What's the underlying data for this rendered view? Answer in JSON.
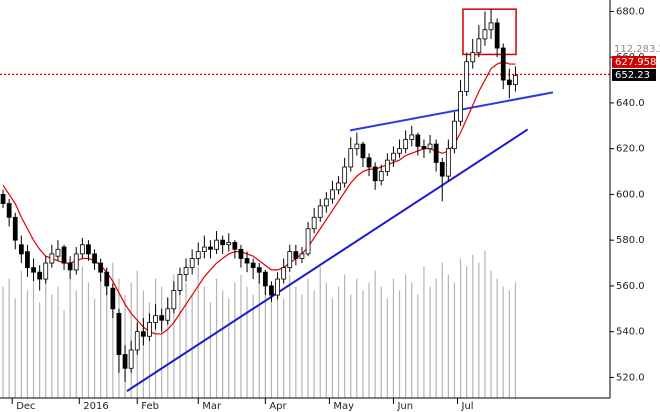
{
  "chart_data": {
    "type": "candlestick",
    "x": [
      -3,
      -1,
      1,
      3,
      5,
      7,
      9,
      11,
      13,
      15,
      17,
      19,
      21,
      23,
      25,
      27,
      29,
      31,
      33,
      35,
      37,
      39,
      41,
      43,
      45,
      47,
      49,
      51,
      53,
      55,
      57,
      59,
      61,
      63,
      65,
      67,
      69,
      71,
      73,
      75,
      77,
      79,
      81,
      83,
      85,
      87,
      89,
      91,
      93,
      95,
      97,
      99,
      101,
      103,
      105,
      107,
      109,
      111,
      113,
      115,
      117,
      119,
      121,
      123,
      125,
      127,
      129,
      131,
      133,
      135,
      137,
      139,
      141,
      143,
      145,
      147,
      149,
      151,
      153,
      155,
      157,
      159,
      161,
      163,
      165
    ],
    "candles": [
      [
        600,
        602,
        594,
        596
      ],
      [
        596,
        598,
        586,
        590
      ],
      [
        590,
        592,
        576,
        580
      ],
      [
        578,
        582,
        570,
        574
      ],
      [
        575,
        578,
        564,
        568
      ],
      [
        568,
        572,
        562,
        566
      ],
      [
        566,
        569,
        558,
        563
      ],
      [
        563,
        573,
        561,
        570
      ],
      [
        570,
        578,
        568,
        574
      ],
      [
        573,
        580,
        571,
        576
      ],
      [
        577,
        578,
        567,
        570
      ],
      [
        570,
        573,
        563,
        567
      ],
      [
        567,
        577,
        565,
        574
      ],
      [
        574,
        581,
        572,
        578
      ],
      [
        578,
        580,
        571,
        574
      ],
      [
        574,
        576,
        567,
        570
      ],
      [
        570,
        572,
        562,
        566
      ],
      [
        566,
        568,
        556,
        560
      ],
      [
        559,
        561,
        546,
        550
      ],
      [
        548,
        550,
        522,
        530
      ],
      [
        530,
        534,
        518,
        524
      ],
      [
        524,
        536,
        522,
        532
      ],
      [
        532,
        544,
        530,
        540
      ],
      [
        540,
        546,
        534,
        538
      ],
      [
        538,
        548,
        536,
        544
      ],
      [
        544,
        552,
        541,
        547
      ],
      [
        547,
        550,
        540,
        545
      ],
      [
        545,
        555,
        543,
        550
      ],
      [
        550,
        562,
        548,
        558
      ],
      [
        558,
        568,
        556,
        565
      ],
      [
        565,
        572,
        562,
        568
      ],
      [
        568,
        576,
        565,
        572
      ],
      [
        572,
        579,
        569,
        575
      ],
      [
        575,
        582,
        572,
        577
      ],
      [
        577,
        580,
        572,
        576
      ],
      [
        576,
        584,
        574,
        580
      ],
      [
        580,
        582,
        574,
        578
      ],
      [
        578,
        583,
        575,
        579
      ],
      [
        579,
        580,
        572,
        576
      ],
      [
        576,
        578,
        568,
        572
      ],
      [
        572,
        575,
        566,
        570
      ],
      [
        570,
        572,
        563,
        568
      ],
      [
        568,
        570,
        561,
        566
      ],
      [
        566,
        567,
        556,
        560
      ],
      [
        560,
        562,
        553,
        556
      ],
      [
        556,
        566,
        554,
        563
      ],
      [
        563,
        572,
        561,
        568
      ],
      [
        568,
        578,
        566,
        575
      ],
      [
        575,
        578,
        569,
        572
      ],
      [
        572,
        577,
        570,
        574
      ],
      [
        574,
        588,
        573,
        585
      ],
      [
        585,
        594,
        583,
        590
      ],
      [
        590,
        598,
        588,
        595
      ],
      [
        595,
        601,
        592,
        598
      ],
      [
        598,
        606,
        596,
        602
      ],
      [
        602,
        608,
        600,
        605
      ],
      [
        605,
        616,
        603,
        612
      ],
      [
        612,
        625,
        610,
        620
      ],
      [
        620,
        627,
        617,
        622
      ],
      [
        622,
        623,
        612,
        616
      ],
      [
        616,
        618,
        608,
        612
      ],
      [
        612,
        614,
        602,
        606
      ],
      [
        606,
        613,
        604,
        610
      ],
      [
        610,
        618,
        608,
        615
      ],
      [
        615,
        621,
        612,
        618
      ],
      [
        618,
        624,
        616,
        620
      ],
      [
        620,
        628,
        618,
        624
      ],
      [
        624,
        630,
        621,
        626
      ],
      [
        626,
        627,
        617,
        621
      ],
      [
        621,
        624,
        616,
        620
      ],
      [
        620,
        626,
        618,
        622
      ],
      [
        622,
        624,
        610,
        614
      ],
      [
        614,
        616,
        597,
        608
      ],
      [
        608,
        624,
        606,
        620
      ],
      [
        620,
        636,
        618,
        632
      ],
      [
        632,
        650,
        630,
        645
      ],
      [
        645,
        662,
        643,
        658
      ],
      [
        658,
        668,
        655,
        662
      ],
      [
        662,
        674,
        660,
        668
      ],
      [
        668,
        680,
        665,
        672
      ],
      [
        672,
        681,
        668,
        675
      ],
      [
        675,
        677,
        660,
        664
      ],
      [
        664,
        666,
        646,
        650
      ],
      [
        650,
        655,
        642,
        648
      ],
      [
        648,
        656,
        645,
        652
      ]
    ],
    "moving_average": {
      "color": "#e00000",
      "values": [
        604,
        600,
        596,
        590,
        585,
        580,
        576,
        573,
        572,
        571,
        570,
        570,
        571,
        572,
        572,
        571,
        569,
        566,
        562,
        557,
        552,
        548,
        545,
        542,
        540,
        539,
        539,
        541,
        544,
        548,
        552,
        556,
        560,
        564,
        567,
        570,
        572,
        574,
        575,
        575,
        574,
        573,
        571,
        569,
        567,
        567,
        568,
        570,
        572,
        574,
        577,
        581,
        585,
        589,
        593,
        597,
        601,
        605,
        608,
        610,
        611,
        611,
        612,
        613,
        614,
        615,
        617,
        618,
        619,
        620,
        620,
        619,
        618,
        619,
        622,
        627,
        633,
        639,
        645,
        650,
        655,
        657,
        658,
        657,
        657
      ]
    },
    "volume": {
      "color": "#b4b4b4",
      "values": [
        28,
        30,
        25,
        32,
        27,
        29,
        24,
        31,
        26,
        28,
        22,
        30,
        27,
        33,
        29,
        25,
        31,
        28,
        34,
        30,
        26,
        29,
        32,
        27,
        24,
        30,
        28,
        25,
        31,
        27,
        29,
        26,
        33,
        28,
        24,
        30,
        27,
        25,
        29,
        31,
        28,
        26,
        32,
        30,
        27,
        29,
        25,
        31,
        28,
        26,
        30,
        27,
        33,
        29,
        25,
        28,
        31,
        26,
        30,
        27,
        29,
        32,
        28,
        25,
        30,
        27,
        31,
        29,
        26,
        33,
        28,
        30,
        34,
        31,
        29,
        35,
        33,
        36,
        34,
        37,
        32,
        30,
        28,
        27,
        29
      ]
    },
    "y2lim": [
      0,
      100
    ],
    "xlim": [
      -4,
      196
    ],
    "xticks": [
      {
        "value": 0,
        "label": "Dec"
      },
      {
        "value": 22,
        "label": "2016"
      },
      {
        "value": 41,
        "label": "Feb"
      },
      {
        "value": 61,
        "label": "Mar"
      },
      {
        "value": 83,
        "label": "Apr"
      },
      {
        "value": 104,
        "label": "May"
      },
      {
        "value": 125,
        "label": "Jun"
      },
      {
        "value": 146,
        "label": "Jul"
      }
    ],
    "ylim": [
      511,
      685
    ],
    "yticks": [
      {
        "value": 520,
        "label": "520.0"
      },
      {
        "value": 540,
        "label": "540.0"
      },
      {
        "value": 560,
        "label": "560.0"
      },
      {
        "value": 580,
        "label": "580.0"
      },
      {
        "value": 600,
        "label": "600.0"
      },
      {
        "value": 620,
        "label": "620.0"
      },
      {
        "value": 640,
        "label": "640.0"
      },
      {
        "value": 660,
        "label": "660.0"
      },
      {
        "value": 680,
        "label": "680.0"
      }
    ],
    "trendlines": [
      {
        "color": "#1a1ad0",
        "x": [
          37.6,
          169
        ],
        "y": [
          514,
          628.4
        ]
      },
      {
        "color": "#2a3ae0",
        "x": [
          110.8,
          177.3
        ],
        "y": [
          628,
          644.6
        ]
      }
    ],
    "highlight_box": {
      "color": "#d00000",
      "x": [
        147.8,
        165.2
      ],
      "y": [
        661.2,
        681
      ]
    },
    "reference_line": {
      "color": "#e00000",
      "value": 652.5
    },
    "price_labels": [
      {
        "text": "112,283.20",
        "color": "#8c8c8c"
      },
      {
        "text": "627.958",
        "color": "#d00000"
      },
      {
        "text": "652.23",
        "color": "#000000",
        "value": 652.23
      }
    ]
  }
}
